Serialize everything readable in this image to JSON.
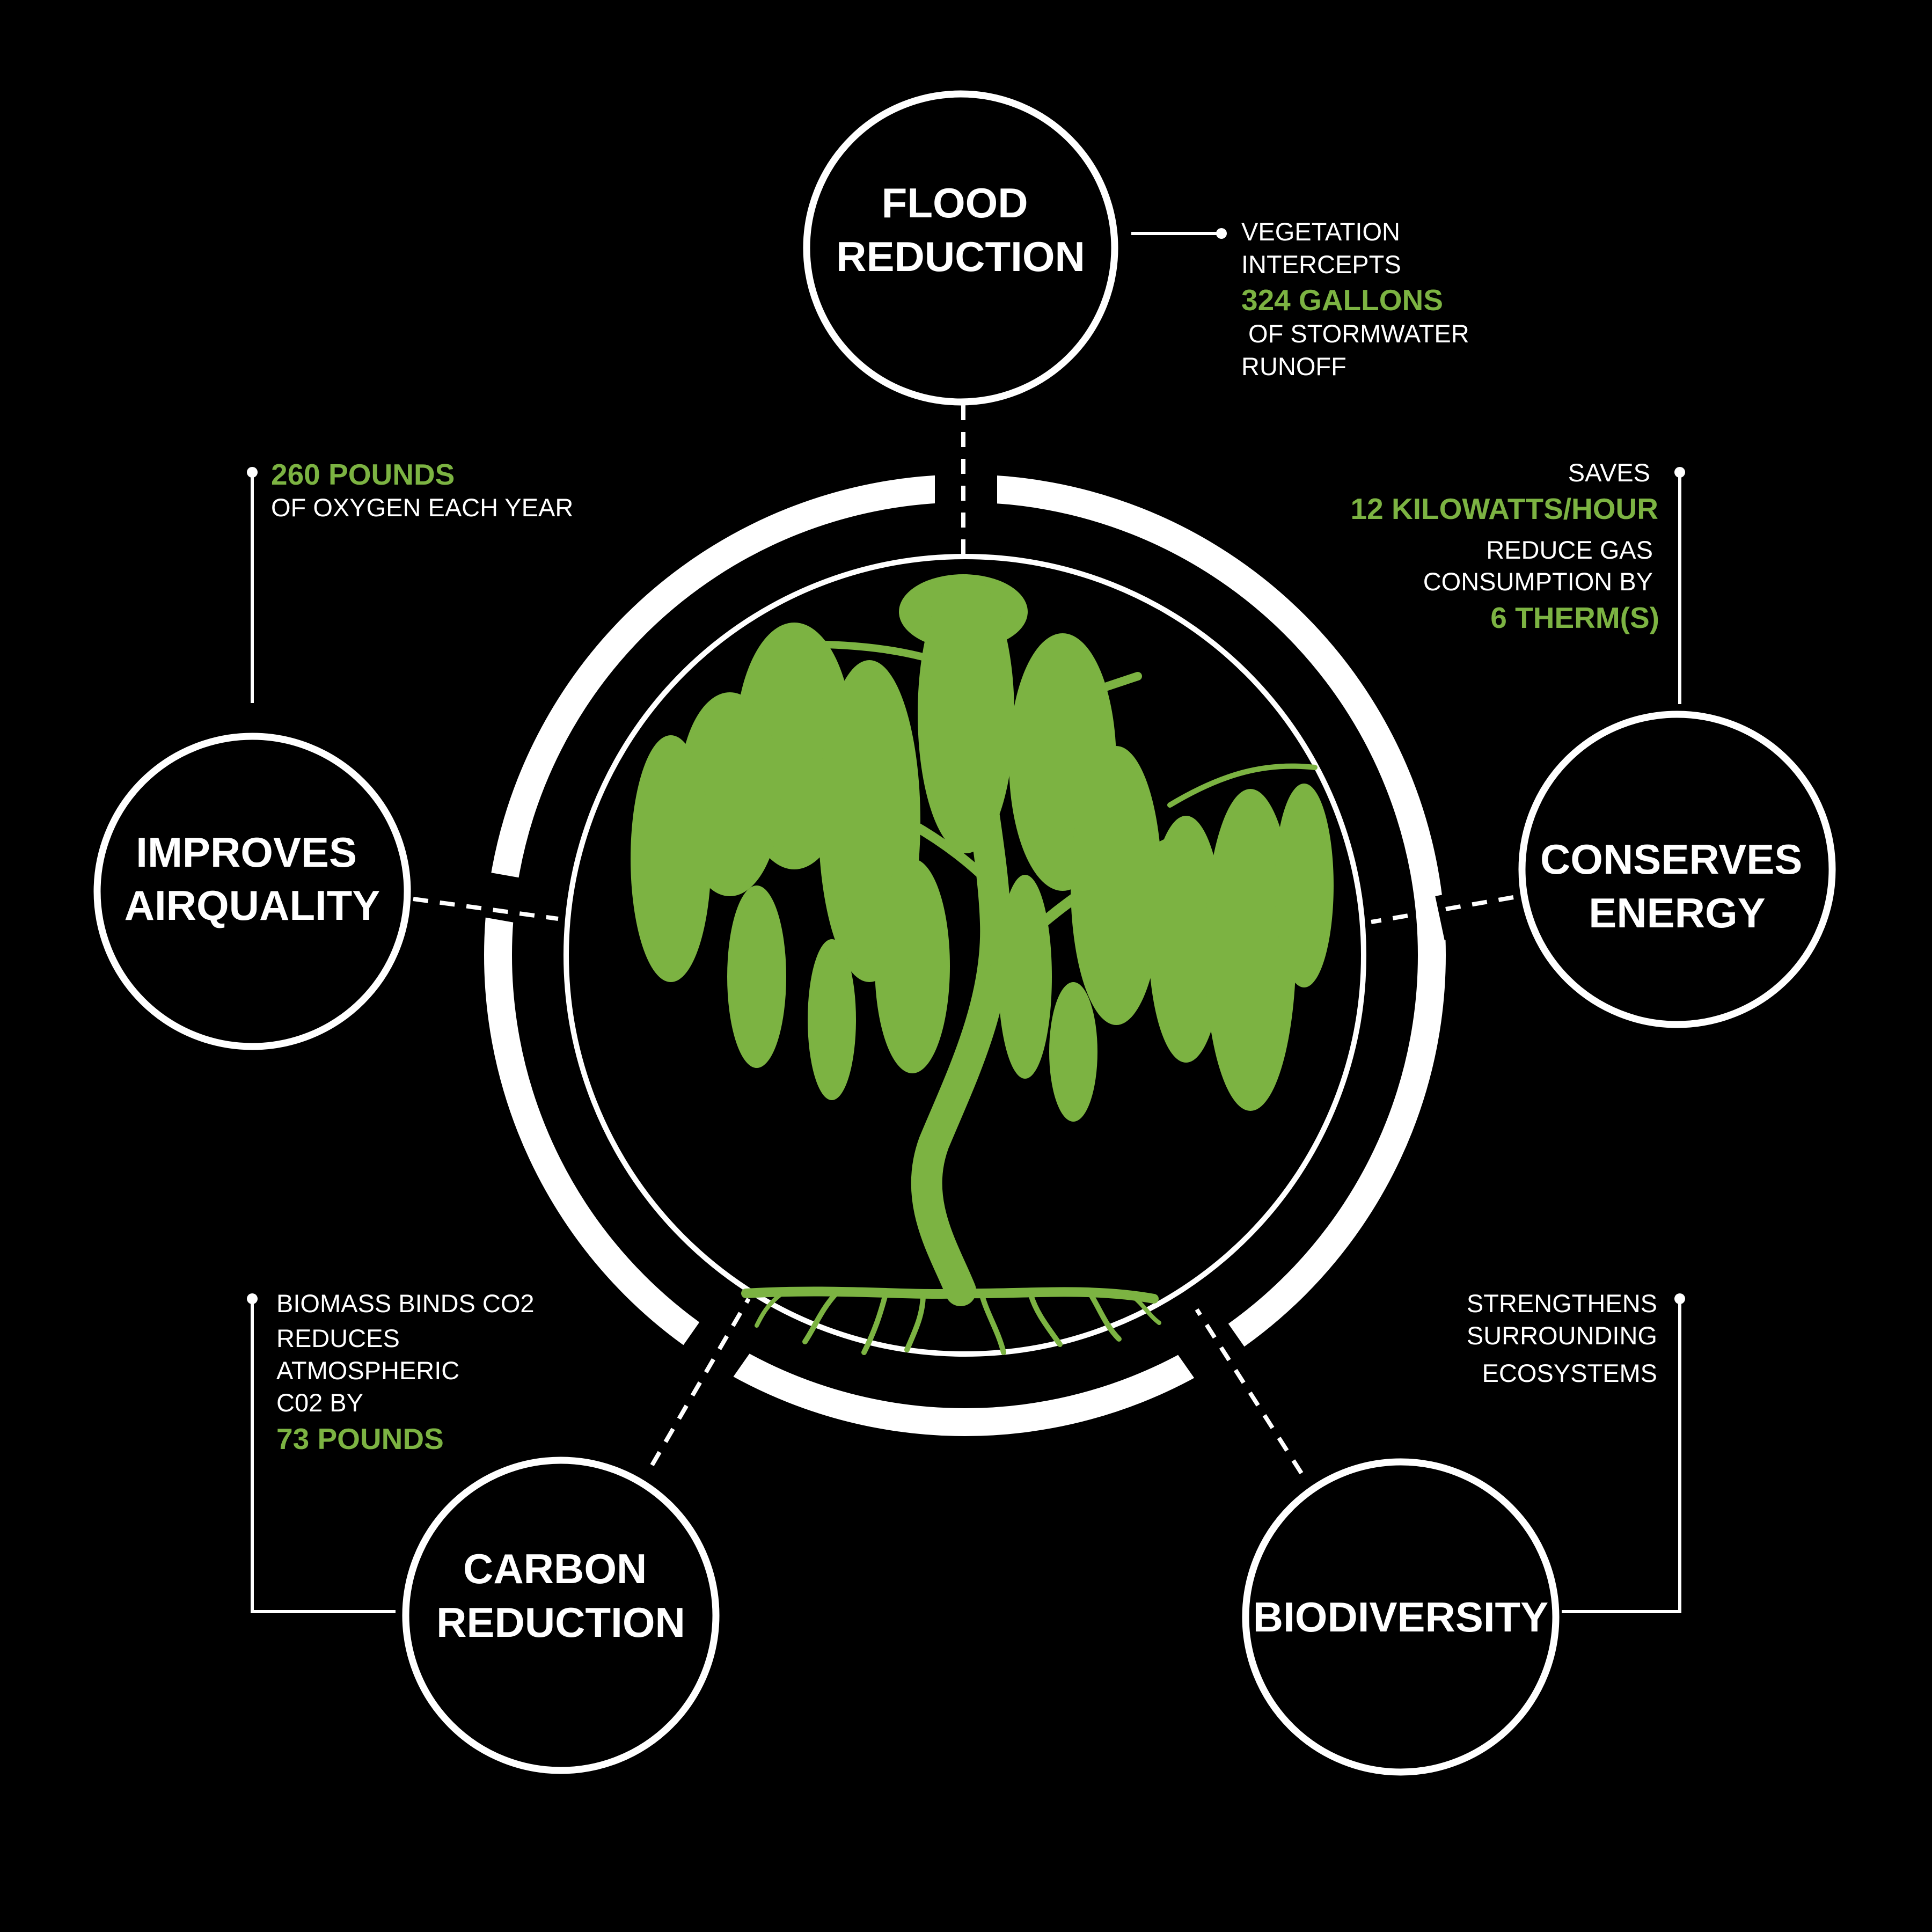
{
  "colors": {
    "background": "#000000",
    "lines": "#ffffff",
    "accent_green": "#7cb342"
  },
  "illustration": "weeping-willow-tree-with-roots",
  "benefits": {
    "flood": {
      "title_lines": [
        "FLOOD",
        "REDUCTION"
      ]
    },
    "air": {
      "title_lines": [
        "IMPROVES",
        "AIRQUALITY"
      ]
    },
    "energy": {
      "title_lines": [
        "CONSERVES",
        "ENERGY"
      ]
    },
    "carbon": {
      "title_lines": [
        "CARBON",
        "REDUCTION"
      ]
    },
    "biodiversity": {
      "title_lines": [
        "BIODIVERSITY"
      ]
    }
  },
  "notes": {
    "flood": {
      "l1": "VEGETATION",
      "l2": "INTERCEPTS",
      "highlight": "324 GALLONS",
      "l3": " OF STORMWATER",
      "l4": "RUNOFF"
    },
    "air": {
      "highlight": "260 POUNDS",
      "l1": "OF OXYGEN EACH YEAR"
    },
    "energy": {
      "l1": "SAVES",
      "highlight1": "12 KILOWATTS/HOUR",
      "l2": "REDUCE GAS",
      "l3": "CONSUMPTION BY",
      "highlight2": "6 THERM(S)"
    },
    "carbon": {
      "l1": "BIOMASS BINDS CO2",
      "l2": "REDUCES",
      "l3": "ATMOSPHERIC",
      "l4": "C02 BY",
      "highlight": "73 POUNDS"
    },
    "biodiversity": {
      "l1": "STRENGTHENS",
      "l2": "SURROUNDING",
      "l3": "ECOSYSTEMS"
    }
  }
}
